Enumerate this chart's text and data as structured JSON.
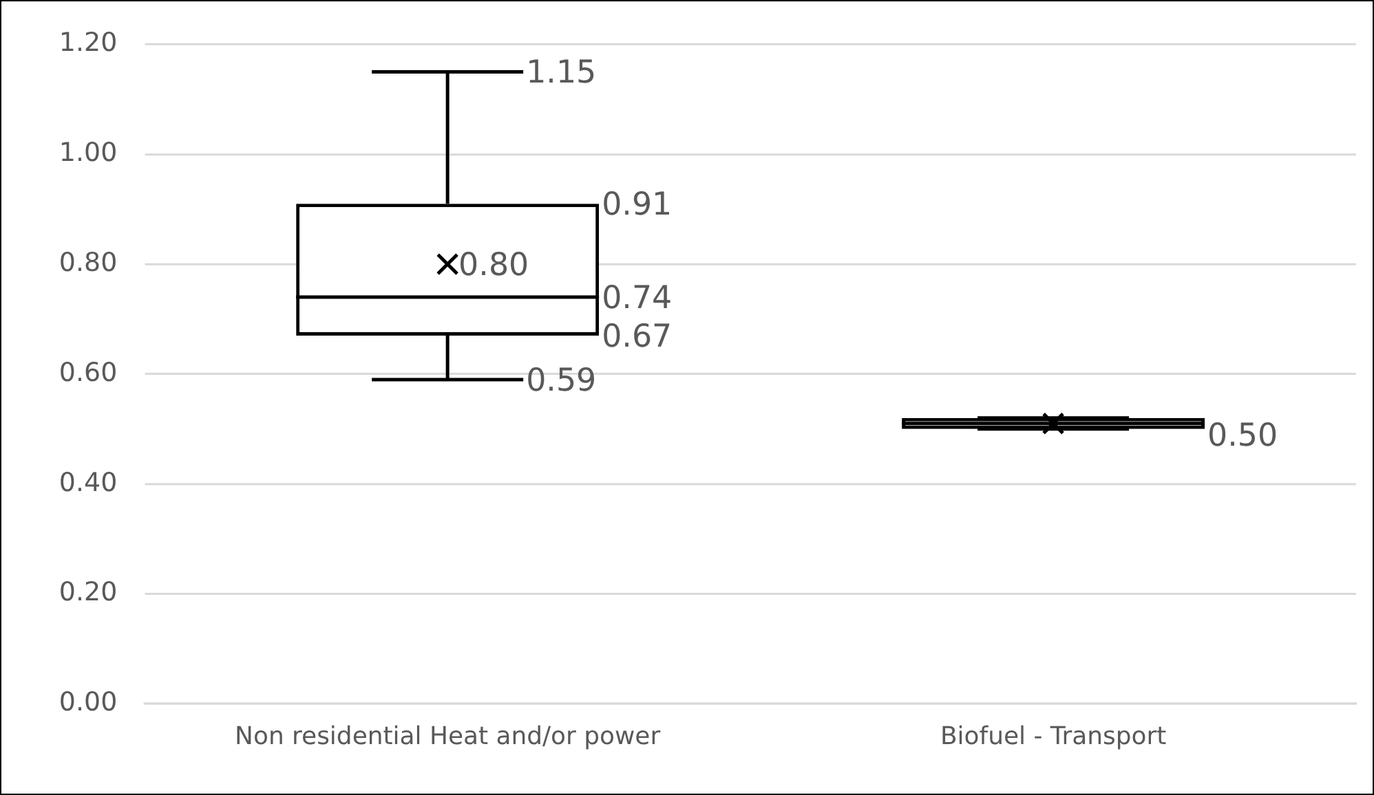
{
  "chart_data": {
    "type": "box",
    "categories": [
      "Non residential Heat and/or power",
      "Biofuel - Transport"
    ],
    "boxes": [
      {
        "low": 0.59,
        "q1": 0.67,
        "median": 0.74,
        "q3": 0.91,
        "high": 1.15,
        "mean": 0.8
      },
      {
        "low": 0.5,
        "q1": 0.5,
        "median": 0.51,
        "q3": 0.52,
        "high": 0.52,
        "mean": 0.51
      }
    ],
    "color": "#000000",
    "ylim": [
      0,
      1.2
    ],
    "yticks": [
      {
        "value": 0,
        "label": "0.00"
      },
      {
        "value": 0.2,
        "label": "0.20"
      },
      {
        "value": 0.4,
        "label": "0.40"
      },
      {
        "value": 0.6,
        "label": "0.60"
      },
      {
        "value": 0.8,
        "label": "0.80"
      },
      {
        "value": 1,
        "label": "1.00"
      },
      {
        "value": 1.2,
        "label": "1.20"
      }
    ],
    "grid": "y",
    "legend": false,
    "annotations": [
      {
        "text": "1.15",
        "x": "Non residential Heat and/or power",
        "y": 1.15
      },
      "0.91",
      "0.80",
      "0.74",
      "0.67",
      {
        "text": "0.59",
        "x": "Non residential Heat and/or power",
        "y": 0.59
      },
      "0.50"
    ]
  }
}
